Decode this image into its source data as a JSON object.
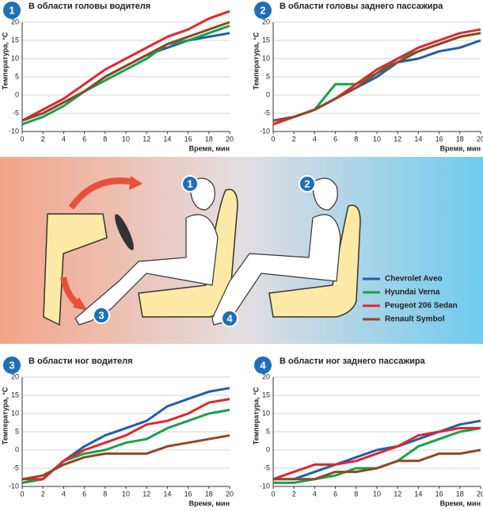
{
  "chart_data": [
    {
      "type": "line",
      "number": "1",
      "title": "В области головы водителя",
      "ylabel": "Температура, °С",
      "xlabel": "Время, мин",
      "x": [
        0,
        2,
        4,
        6,
        8,
        10,
        12,
        14,
        16,
        18,
        20
      ],
      "xlim": [
        0,
        20
      ],
      "xticks": [
        0,
        2,
        4,
        6,
        8,
        10,
        12,
        14,
        16,
        18,
        20
      ],
      "ylim": [
        -10,
        20
      ],
      "yticks": [
        -10,
        -5,
        0,
        5,
        10,
        15,
        20
      ],
      "grid": true,
      "series": [
        {
          "values": [
            -7,
            -5,
            -2,
            1,
            5,
            8,
            11,
            13,
            15,
            16,
            17
          ]
        },
        {
          "values": [
            -8,
            -6,
            -3,
            1,
            4,
            7,
            10,
            14,
            15,
            17,
            19
          ]
        },
        {
          "values": [
            -7,
            -4,
            -1,
            3,
            7,
            10,
            13,
            16,
            18,
            21,
            23
          ]
        },
        {
          "values": [
            -7,
            -5,
            -2,
            1,
            5,
            8,
            11,
            14,
            16,
            18,
            20
          ]
        }
      ]
    },
    {
      "type": "line",
      "number": "2",
      "title": "В области головы заднего пассажира",
      "ylabel": "Температура, °С",
      "xlabel": "Время, мин",
      "x": [
        0,
        2,
        4,
        6,
        8,
        10,
        12,
        14,
        16,
        18,
        20
      ],
      "xlim": [
        0,
        20
      ],
      "xticks": [
        0,
        2,
        4,
        6,
        8,
        10,
        12,
        14,
        16,
        18,
        20
      ],
      "ylim": [
        -10,
        20
      ],
      "yticks": [
        -10,
        -5,
        0,
        5,
        10,
        15,
        20
      ],
      "grid": true,
      "series": [
        {
          "values": [
            -7,
            -6,
            -4,
            -1,
            2,
            5,
            9,
            10,
            12,
            13,
            15
          ]
        },
        {
          "values": [
            -8,
            -6,
            -4,
            3,
            3,
            6,
            10,
            12,
            14,
            16,
            17
          ]
        },
        {
          "values": [
            -8,
            -6,
            -4,
            -1,
            3,
            7,
            10,
            13,
            15,
            17,
            18
          ]
        },
        {
          "values": [
            -7,
            -6,
            -4,
            -1,
            2,
            6,
            9,
            12,
            14,
            16,
            17
          ]
        }
      ]
    },
    {
      "type": "line",
      "number": "3",
      "title": "В области ног водителя",
      "ylabel": "Температура, °С",
      "xlabel": "Время, мин",
      "x": [
        0,
        2,
        4,
        6,
        8,
        10,
        12,
        14,
        16,
        18,
        20
      ],
      "xlim": [
        0,
        20
      ],
      "xticks": [
        0,
        2,
        4,
        6,
        8,
        10,
        12,
        14,
        16,
        18,
        20
      ],
      "ylim": [
        -10,
        20
      ],
      "yticks": [
        -10,
        -5,
        0,
        5,
        10,
        15,
        20
      ],
      "grid": true,
      "series": [
        {
          "values": [
            -9,
            -8,
            -3,
            1,
            4,
            6,
            8,
            12,
            14,
            16,
            17
          ]
        },
        {
          "values": [
            -9,
            -8,
            -3,
            -1,
            0,
            2,
            3,
            6,
            8,
            10,
            11
          ]
        },
        {
          "values": [
            -8,
            -8,
            -3,
            0,
            2,
            4,
            7,
            8,
            10,
            13,
            14
          ]
        },
        {
          "values": [
            -8,
            -7,
            -4,
            -2,
            -1,
            -1,
            -1,
            1,
            2,
            3,
            4
          ]
        }
      ]
    },
    {
      "type": "line",
      "number": "4",
      "title": "В области ног заднего пассажира",
      "ylabel": "Температура, °С",
      "xlabel": "Время, мин",
      "x": [
        0,
        2,
        4,
        6,
        8,
        10,
        12,
        14,
        16,
        18,
        20
      ],
      "xlim": [
        0,
        20
      ],
      "xticks": [
        0,
        2,
        4,
        6,
        8,
        10,
        12,
        14,
        16,
        18,
        20
      ],
      "ylim": [
        -10,
        20
      ],
      "yticks": [
        -10,
        -5,
        0,
        5,
        10,
        15,
        20
      ],
      "grid": true,
      "series": [
        {
          "values": [
            -8,
            -8,
            -6,
            -4,
            -2,
            0,
            1,
            3,
            5,
            7,
            8
          ]
        },
        {
          "values": [
            -9,
            -9,
            -8,
            -7,
            -5,
            -5,
            -3,
            1,
            3,
            5,
            6
          ]
        },
        {
          "values": [
            -8,
            -6,
            -4,
            -4,
            -3,
            -1,
            1,
            4,
            5,
            6,
            6
          ]
        },
        {
          "values": [
            -8,
            -8,
            -8,
            -6,
            -6,
            -5,
            -3,
            -3,
            -1,
            -1,
            0
          ]
        }
      ]
    }
  ],
  "legend": [
    {
      "name": "Chevrolet Aveo",
      "color": "#1f5fa8"
    },
    {
      "name": "Hyundai Verna",
      "color": "#1aa04a"
    },
    {
      "name": "Peugeot 206 Sedan",
      "color": "#e0262e"
    },
    {
      "name": "Renault Symbol",
      "color": "#8a4a2a"
    }
  ]
}
